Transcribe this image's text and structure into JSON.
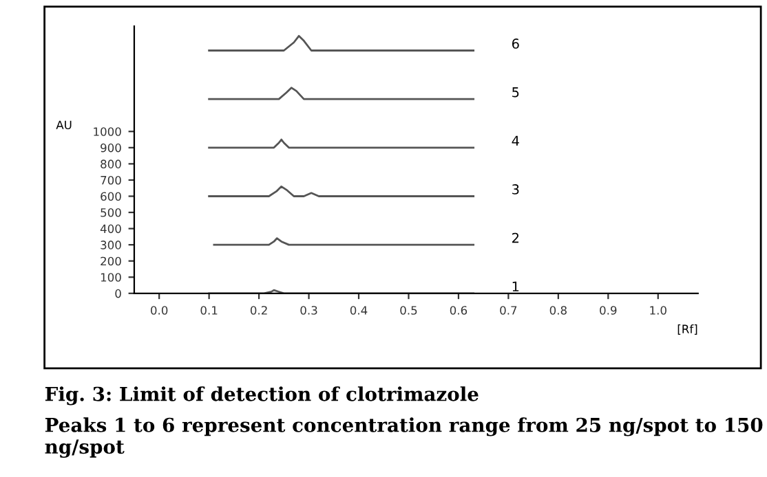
{
  "chart_data": {
    "type": "line",
    "title": "Fig. 3: Limit of detection of clotrimazole",
    "xlabel": "[Rf]",
    "ylabel": "AU",
    "annotations": [
      "Peaks 1 to 6 represent concentration range from 25 ng/spot to 150 ng/spot"
    ],
    "series": [
      {
        "name": "6",
        "color": "#555555",
        "x": [
          0.1,
          0.25,
          0.27,
          0.28,
          0.29,
          0.305,
          0.63
        ],
        "values": [
          1500,
          1500,
          1550,
          1590,
          1560,
          1500,
          1500
        ]
      },
      {
        "name": "5",
        "color": "#555555",
        "x": [
          0.1,
          0.24,
          0.255,
          0.265,
          0.275,
          0.29,
          0.63
        ],
        "values": [
          1200,
          1200,
          1240,
          1270,
          1250,
          1200,
          1200
        ]
      },
      {
        "name": "4",
        "color": "#555555",
        "x": [
          0.1,
          0.23,
          0.24,
          0.245,
          0.25,
          0.26,
          0.63
        ],
        "values": [
          900,
          900,
          930,
          950,
          930,
          900,
          900
        ]
      },
      {
        "name": "3",
        "color": "#555555",
        "x": [
          0.1,
          0.22,
          0.235,
          0.245,
          0.255,
          0.27,
          0.29,
          0.305,
          0.32,
          0.63
        ],
        "values": [
          600,
          600,
          630,
          660,
          640,
          600,
          600,
          620,
          600,
          600
        ]
      },
      {
        "name": "2",
        "color": "#555555",
        "x": [
          0.11,
          0.22,
          0.23,
          0.236,
          0.245,
          0.26,
          0.63
        ],
        "values": [
          300,
          300,
          320,
          340,
          320,
          300,
          300
        ]
      },
      {
        "name": "1",
        "color": "#555555",
        "x": [
          0.1,
          0.21,
          0.225,
          0.23,
          0.24,
          0.25,
          0.63
        ],
        "values": [
          0,
          0,
          10,
          20,
          10,
          0,
          0
        ]
      }
    ],
    "xlim": [
      -0.05,
      1.08
    ],
    "ylim": [
      0,
      1650
    ],
    "xticks": [
      {
        "value": 0,
        "label": "0.0"
      },
      0.1,
      0.2,
      0.3,
      0.4,
      0.5,
      0.6,
      0.7,
      0.8,
      0.9,
      {
        "value": 1,
        "label": "1.0"
      }
    ],
    "yticks": [
      0,
      100,
      200,
      300,
      400,
      500,
      600,
      700,
      800,
      900,
      1000
    ],
    "grid": false
  }
}
